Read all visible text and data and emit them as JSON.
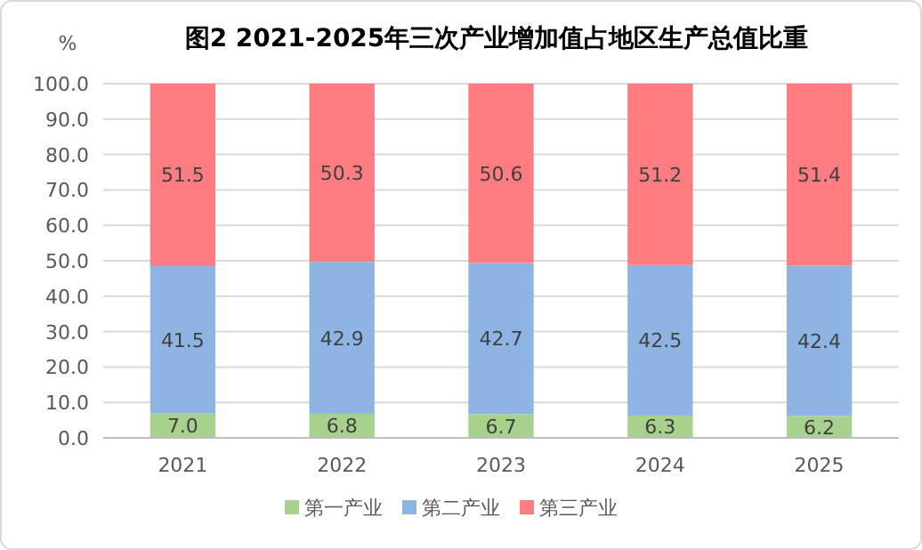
{
  "chart_data": {
    "type": "bar",
    "title": "图2 2021-2025年三次产业增加值占地区生产总值比重",
    "ylabel": "%",
    "categories": [
      "2021",
      "2022",
      "2023",
      "2024",
      "2025"
    ],
    "stacked": true,
    "series": [
      {
        "name": "第一产业",
        "color": "#a9d18e",
        "values": [
          7.0,
          6.8,
          6.7,
          6.3,
          6.2
        ],
        "value_labels": [
          "7.0",
          "6.8",
          "6.7",
          "6.3",
          "6.2"
        ]
      },
      {
        "name": "第二产业",
        "color": "#8eb4e3",
        "values": [
          41.5,
          42.9,
          42.7,
          42.5,
          42.4
        ],
        "value_labels": [
          "41.5",
          "42.9",
          "42.7",
          "42.5",
          "42.4"
        ]
      },
      {
        "name": "第三产业",
        "color": "#ff7c80",
        "values": [
          51.5,
          50.3,
          50.6,
          51.2,
          51.4
        ],
        "value_labels": [
          "51.5",
          "50.3",
          "50.6",
          "51.2",
          "51.4"
        ]
      }
    ],
    "ylim": [
      0,
      100
    ],
    "yticks": [
      {
        "value": 0,
        "label": "0.0"
      },
      {
        "value": 10,
        "label": "10.0"
      },
      {
        "value": 20,
        "label": "20.0"
      },
      {
        "value": 30,
        "label": "30.0"
      },
      {
        "value": 40,
        "label": "40.0"
      },
      {
        "value": 50,
        "label": "50.0"
      },
      {
        "value": 60,
        "label": "60.0"
      },
      {
        "value": 70,
        "label": "70.0"
      },
      {
        "value": 80,
        "label": "80.0"
      },
      {
        "value": 90,
        "label": "90.0"
      },
      {
        "value": 100,
        "label": "100.0"
      }
    ],
    "grid": "y",
    "legend": "bottom"
  }
}
